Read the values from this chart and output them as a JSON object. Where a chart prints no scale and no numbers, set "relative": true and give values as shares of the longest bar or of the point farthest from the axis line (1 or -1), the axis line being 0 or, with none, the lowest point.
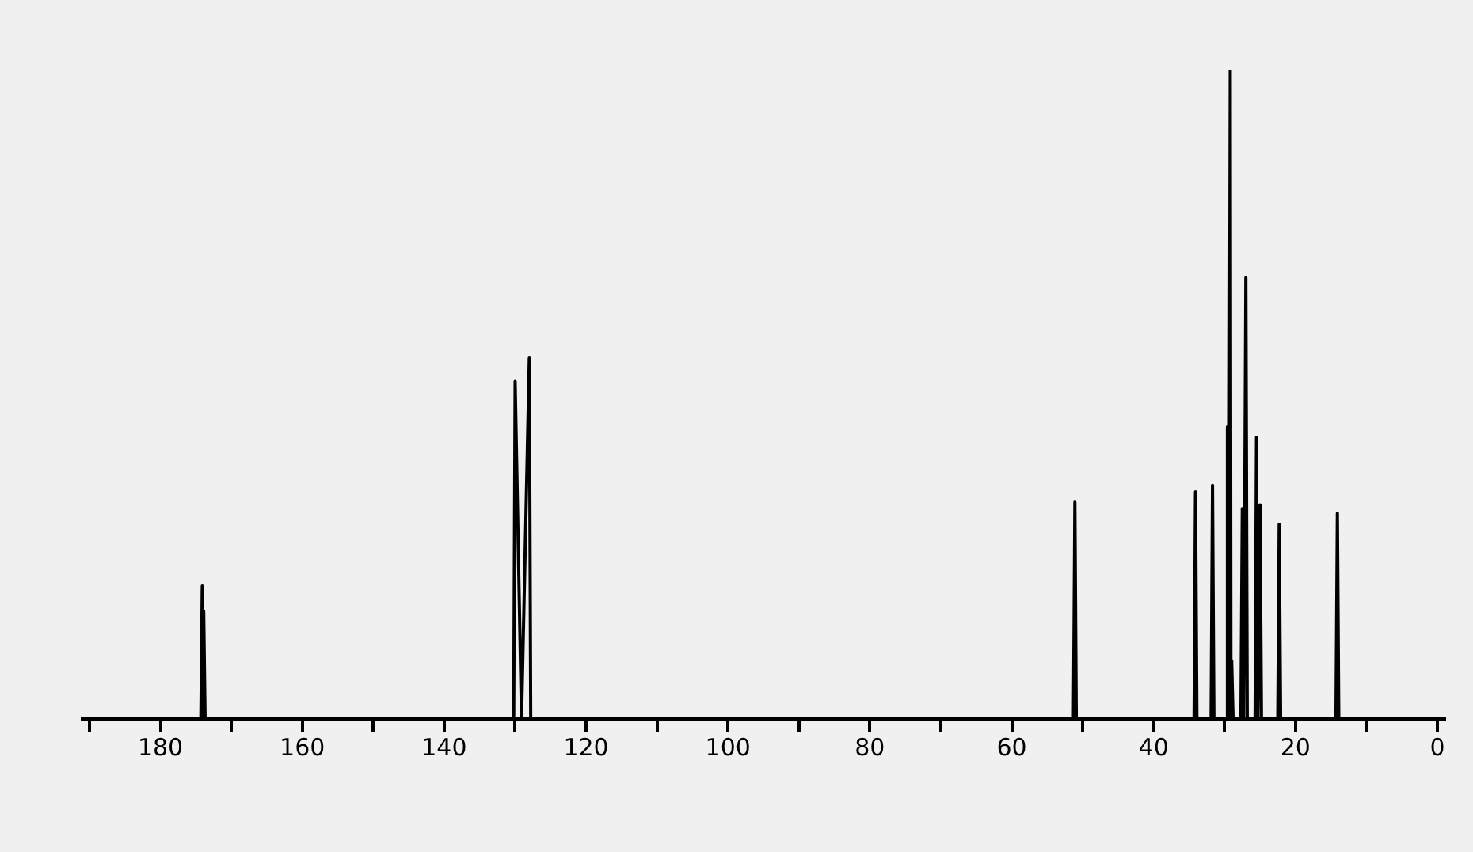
{
  "chart_data": {
    "type": "line",
    "relative": true,
    "grid": false,
    "legend": false,
    "xlim": [
      191,
      -1
    ],
    "xticks": [
      {
        "value": 190,
        "label": null
      },
      180,
      {
        "value": 170,
        "label": null
      },
      160,
      {
        "value": 150,
        "label": null
      },
      140,
      {
        "value": 130,
        "label": null
      },
      120,
      {
        "value": 110,
        "label": null
      },
      100,
      {
        "value": 90,
        "label": null
      },
      80,
      {
        "value": 70,
        "label": null
      },
      60,
      {
        "value": 50,
        "label": null
      },
      40,
      {
        "value": 30,
        "label": null
      },
      20,
      {
        "value": 10,
        "label": null
      },
      0
    ],
    "series": [
      {
        "color": "#000000",
        "x": [
          191,
          174.3,
          174.1,
          174.0,
          173.9,
          173.7,
          130.2,
          130.0,
          129.1,
          128.0,
          127.8,
          51.3,
          51.1,
          50.9,
          34.3,
          34.1,
          33.9,
          31.9,
          31.7,
          31.5,
          29.8,
          29.6,
          29.4,
          29.2,
          29.1,
          29.0,
          28.8,
          27.7,
          27.5,
          27.3,
          27.0,
          26.8,
          25.7,
          25.5,
          25.3,
          25.0,
          24.8,
          22.5,
          22.3,
          22.1,
          14.3,
          14.1,
          13.9,
          -1
        ],
        "values": [
          0,
          0,
          0.205,
          0,
          0.166,
          0,
          0,
          0.52,
          0,
          0.556,
          0,
          0,
          0.334,
          0,
          0,
          0.35,
          0,
          0,
          0.36,
          0,
          0,
          0.45,
          0,
          1.0,
          0,
          0.09,
          0,
          0,
          0.324,
          0,
          0.68,
          0,
          0,
          0.434,
          0,
          0.33,
          0,
          0,
          0.3,
          0,
          0,
          0.317,
          0,
          0
        ]
      }
    ]
  }
}
